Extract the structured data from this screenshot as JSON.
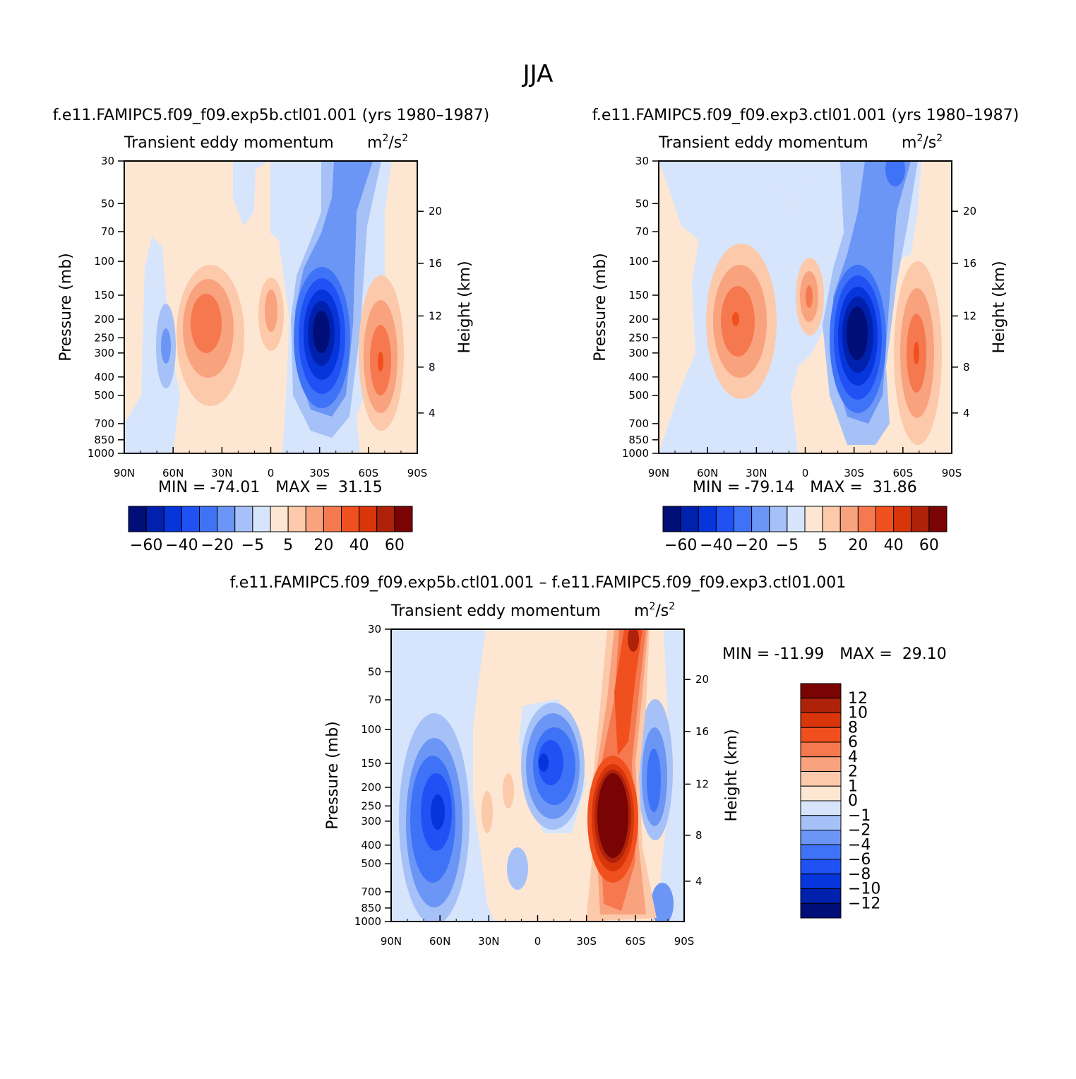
{
  "page": {
    "title": "JJA"
  },
  "palette": {
    "stops": [
      "#000e78",
      "#0021ad",
      "#0635dc",
      "#1f51f5",
      "#3f73f7",
      "#6b96f5",
      "#a6c1f7",
      "#d6e5fb",
      "#fde7d3",
      "#fcc9aa",
      "#f9a27e",
      "#f6784f",
      "#f0501d",
      "#d8350b",
      "#af220a",
      "#7a0303"
    ]
  },
  "chart_data": [
    {
      "id": "panel1",
      "type": "contour",
      "title_main": "f.e11.FAMIPC5.f09_f09.exp5b.ctl01.001 (yrs 1980–1987)",
      "title_left": "Transient eddy momentum",
      "title_right_base": "m",
      "title_right_sup": "2",
      "title_right_mid": "/s",
      "title_right_sup2": "2",
      "xlabel": "",
      "ylabel": "Pressure (mb)",
      "y2label": "Height (km)",
      "x_ticks": [
        "90N",
        "60N",
        "30N",
        "0",
        "30S",
        "60S",
        "90S"
      ],
      "y_ticks": [
        "30",
        "50",
        "70",
        "100",
        "150",
        "200",
        "250",
        "300",
        "400",
        "500",
        "700",
        "850",
        "1000"
      ],
      "y2_ticks": [
        "20",
        "16",
        "12",
        "8",
        "4"
      ],
      "min_label": "MIN =",
      "min_value": "-74.01",
      "max_label": "MAX =",
      "max_value": "31.15",
      "colorbar_labels": [
        "−60",
        "−40",
        "−20",
        "−5",
        "5",
        "20",
        "40",
        "60"
      ],
      "features": [
        {
          "lat": 65,
          "p": 300,
          "value": -18
        },
        {
          "lat": 40,
          "p": 220,
          "value": 31
        },
        {
          "lat": 8,
          "p": 200,
          "value": 12
        },
        {
          "lat": -32,
          "p": 250,
          "value": -74
        },
        {
          "lat": -68,
          "p": 350,
          "value": 30
        }
      ]
    },
    {
      "id": "panel2",
      "type": "contour",
      "title_main": "f.e11.FAMIPC5.f09_f09.exp3.ctl01.001 (yrs 1980–1987)",
      "title_left": "Transient eddy momentum",
      "title_right_base": "m",
      "title_right_sup": "2",
      "title_right_mid": "/s",
      "title_right_sup2": "2",
      "xlabel": "",
      "ylabel": "Pressure (mb)",
      "y2label": "Height (km)",
      "x_ticks": [
        "90N",
        "60N",
        "30N",
        "0",
        "30S",
        "60S",
        "90S"
      ],
      "y_ticks": [
        "30",
        "50",
        "70",
        "100",
        "150",
        "200",
        "250",
        "300",
        "400",
        "500",
        "700",
        "850",
        "1000"
      ],
      "y2_ticks": [
        "20",
        "16",
        "12",
        "8",
        "4"
      ],
      "min_label": "MIN =",
      "min_value": "-79.14",
      "max_label": "MAX =",
      "max_value": "31.86",
      "colorbar_labels": [
        "−60",
        "−40",
        "−20",
        "−5",
        "5",
        "20",
        "40",
        "60"
      ],
      "features": [
        {
          "lat": 42,
          "p": 210,
          "value": 31
        },
        {
          "lat": 0,
          "p": 160,
          "value": 25
        },
        {
          "lat": -32,
          "p": 260,
          "value": -79
        },
        {
          "lat": -68,
          "p": 320,
          "value": 31
        },
        {
          "lat": -55,
          "p": 35,
          "value": -30
        }
      ]
    },
    {
      "id": "panel3",
      "type": "contour",
      "title_main": "f.e11.FAMIPC5.f09_f09.exp5b.ctl01.001 – f.e11.FAMIPC5.f09_f09.exp3.ctl01.001",
      "title_left": "Transient eddy momentum",
      "title_right_base": "m",
      "title_right_sup": "2",
      "title_right_mid": "/s",
      "title_right_sup2": "2",
      "xlabel": "",
      "ylabel": "Pressure (mb)",
      "y2label": "Height (km)",
      "x_ticks": [
        "90N",
        "60N",
        "30N",
        "0",
        "30S",
        "60S",
        "90S"
      ],
      "y_ticks": [
        "30",
        "50",
        "70",
        "100",
        "150",
        "200",
        "250",
        "300",
        "400",
        "500",
        "700",
        "850",
        "1000"
      ],
      "y2_ticks": [
        "20",
        "16",
        "12",
        "8",
        "4"
      ],
      "min_label": "MIN =",
      "min_value": "-11.99",
      "max_label": "MAX =",
      "max_value": "29.10",
      "colorbar_labels": [
        "12",
        "10",
        "8",
        "6",
        "4",
        "2",
        "1",
        "0",
        "−1",
        "−2",
        "−4",
        "−6",
        "−8",
        "−10",
        "−12"
      ],
      "features": [
        {
          "lat": 60,
          "p": 280,
          "value": -7
        },
        {
          "lat": -2,
          "p": 150,
          "value": -9
        },
        {
          "lat": -48,
          "p": 300,
          "value": 29
        },
        {
          "lat": -72,
          "p": 180,
          "value": -6
        }
      ]
    }
  ]
}
